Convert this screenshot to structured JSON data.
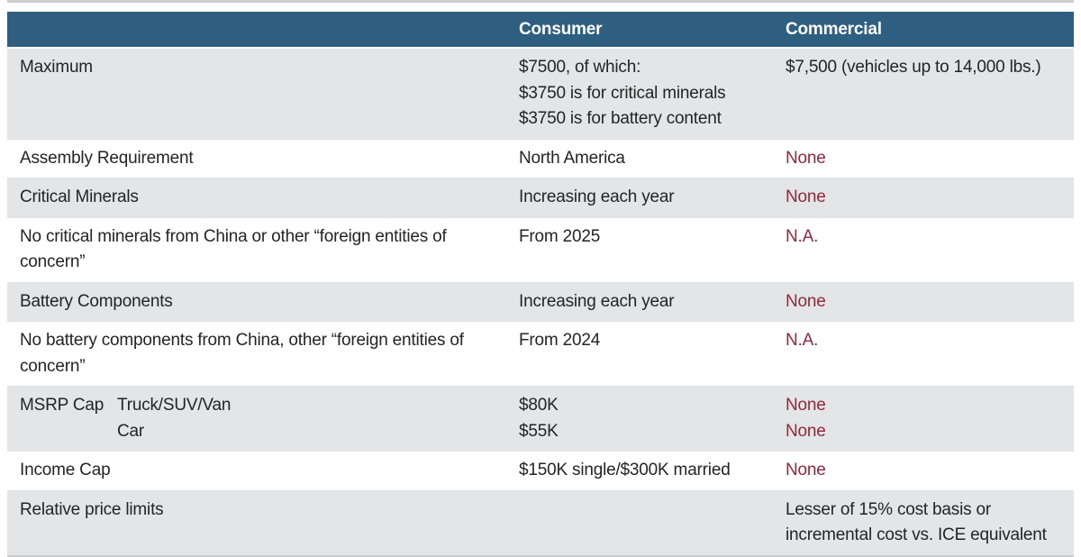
{
  "chart_data": {
    "type": "table",
    "title": "",
    "columns": [
      "",
      "Consumer",
      "Commercial"
    ],
    "rows": [
      {
        "label": "Maximum",
        "consumer": [
          "$7500, of which:",
          "$3750 is for critical minerals",
          "$3750 is for battery content"
        ],
        "commercial": [
          "$7,500 (vehicles up to 14,000 lbs.)"
        ]
      },
      {
        "label": "Assembly Requirement",
        "consumer": [
          "North America"
        ],
        "commercial": [
          "None"
        ]
      },
      {
        "label": "Critical Minerals",
        "consumer": [
          "Increasing each year"
        ],
        "commercial": [
          "None"
        ]
      },
      {
        "label": "No critical minerals from China or other “foreign entities of concern”",
        "consumer": [
          "From 2025"
        ],
        "commercial": [
          "N.A."
        ]
      },
      {
        "label": "Battery Components",
        "consumer": [
          "Increasing each year"
        ],
        "commercial": [
          "None"
        ]
      },
      {
        "label": "No battery components from China, other “foreign entities of concern”",
        "consumer": [
          "From 2024"
        ],
        "commercial": [
          "N.A."
        ]
      },
      {
        "label": "MSRP Cap",
        "sublabels": [
          "Truck/SUV/Van",
          "Car"
        ],
        "consumer": [
          "$80K",
          "$55K"
        ],
        "commercial": [
          "None",
          "None"
        ]
      },
      {
        "label": "Income Cap",
        "consumer": [
          "$150K single/$300K married"
        ],
        "commercial": [
          "None"
        ]
      },
      {
        "label": "Relative price limits",
        "consumer": [],
        "commercial": [
          "Lesser of 15% cost basis or incremental cost vs. ICE equivalent"
        ]
      }
    ],
    "layout": {
      "legend": "none",
      "grid": "row-striped"
    },
    "colors": {
      "header_bg": "#2e5f80",
      "header_text": "#ffffff",
      "row_alt_bg": "#e3e5e7",
      "row_plain_bg": "#ffffff",
      "text": "#242424",
      "accent_red": "#8e2a3c",
      "rule": "#cbcfd2"
    }
  }
}
